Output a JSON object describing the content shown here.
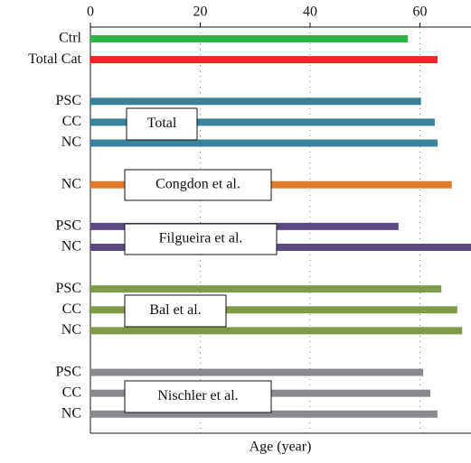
{
  "chart_data": {
    "type": "bar",
    "orientation": "horizontal",
    "xlabel": "Age (year)",
    "categories": [
      "Ctrl",
      "Total Cat",
      null,
      "PSC",
      "CC",
      "NC",
      null,
      "NC",
      null,
      "PSC",
      "NC",
      null,
      "PSC",
      "CC",
      "NC",
      null,
      "PSC",
      "CC",
      "NC"
    ],
    "values": [
      57.8,
      63.2,
      null,
      60.2,
      62.7,
      63.2,
      null,
      65.8,
      null,
      56.1,
      69.3,
      null,
      63.9,
      66.8,
      67.7,
      null,
      60.6,
      61.9,
      63.2
    ],
    "colors": [
      "#2db34a",
      "#e8282b",
      null,
      "#3a8299",
      "#3a8299",
      "#3a8299",
      null,
      "#e07b2e",
      null,
      "#5b4a82",
      "#5b4a82",
      null,
      "#7f9a48",
      "#7f9a48",
      "#7f9a48",
      null,
      "#8a8a8e",
      "#8a8a8e",
      "#8a8a8e"
    ],
    "annotations": [
      "Total",
      "Congdon et al.",
      "Filgueira et al.",
      "Bal et al.",
      "Nischler et al."
    ],
    "xlim": [
      0,
      69.3
    ],
    "xticks": [
      0,
      20,
      40,
      60
    ],
    "grid": true
  }
}
